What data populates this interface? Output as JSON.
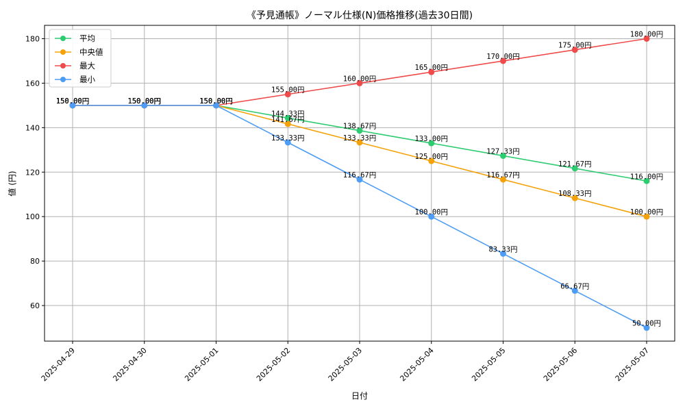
{
  "chart_data": {
    "type": "line",
    "title": "《予見通帳》ノーマル仕様(N)価格推移(過去30日間)",
    "xlabel": "日付",
    "ylabel": "値 (円)",
    "categories": [
      "2025-04-29",
      "2025-04-30",
      "2025-05-01",
      "2025-05-02",
      "2025-05-03",
      "2025-05-04",
      "2025-05-05",
      "2025-05-06",
      "2025-05-07"
    ],
    "ylim": [
      44,
      186
    ],
    "yticks": [
      60,
      80,
      100,
      120,
      140,
      160,
      180
    ],
    "grid": true,
    "legend_position": "top-left",
    "value_suffix": "円",
    "series": [
      {
        "name": "平均",
        "color": "#2ecc71",
        "values": [
          150.0,
          150.0,
          150.0,
          144.33,
          138.67,
          133.0,
          127.33,
          121.67,
          116.0
        ],
        "labels": [
          "150.00円",
          "150.00円",
          "150.00円",
          "144.33円",
          "138.67円",
          "133.00円",
          "127.33円",
          "121.67円",
          "116.00円"
        ]
      },
      {
        "name": "中央値",
        "color": "#f5a20a",
        "values": [
          150.0,
          150.0,
          150.0,
          141.67,
          133.33,
          125.0,
          116.67,
          108.33,
          100.0
        ],
        "labels": [
          "150.00円",
          "150.00円",
          "150.00円",
          "141.67円",
          "133.33円",
          "125.00円",
          "116.67円",
          "108.33円",
          "100.00円"
        ]
      },
      {
        "name": "最大",
        "color": "#ef4b4b",
        "values": [
          150.0,
          150.0,
          150.0,
          155.0,
          160.0,
          165.0,
          170.0,
          175.0,
          180.0
        ],
        "labels": [
          "150.00円",
          "150.00円",
          "150.00円",
          "155.00円",
          "160.00円",
          "165.00円",
          "170.00円",
          "175.00円",
          "180.00円"
        ]
      },
      {
        "name": "最小",
        "color": "#4d9cf5",
        "values": [
          150.0,
          150.0,
          150.0,
          133.33,
          116.67,
          100.0,
          83.33,
          66.67,
          50.0
        ],
        "labels": [
          "150.00円",
          "150.00円",
          "150.00円",
          "133.33円",
          "116.67円",
          "100.00円",
          "83.33円",
          "66.67円",
          "50.00円"
        ]
      }
    ]
  }
}
